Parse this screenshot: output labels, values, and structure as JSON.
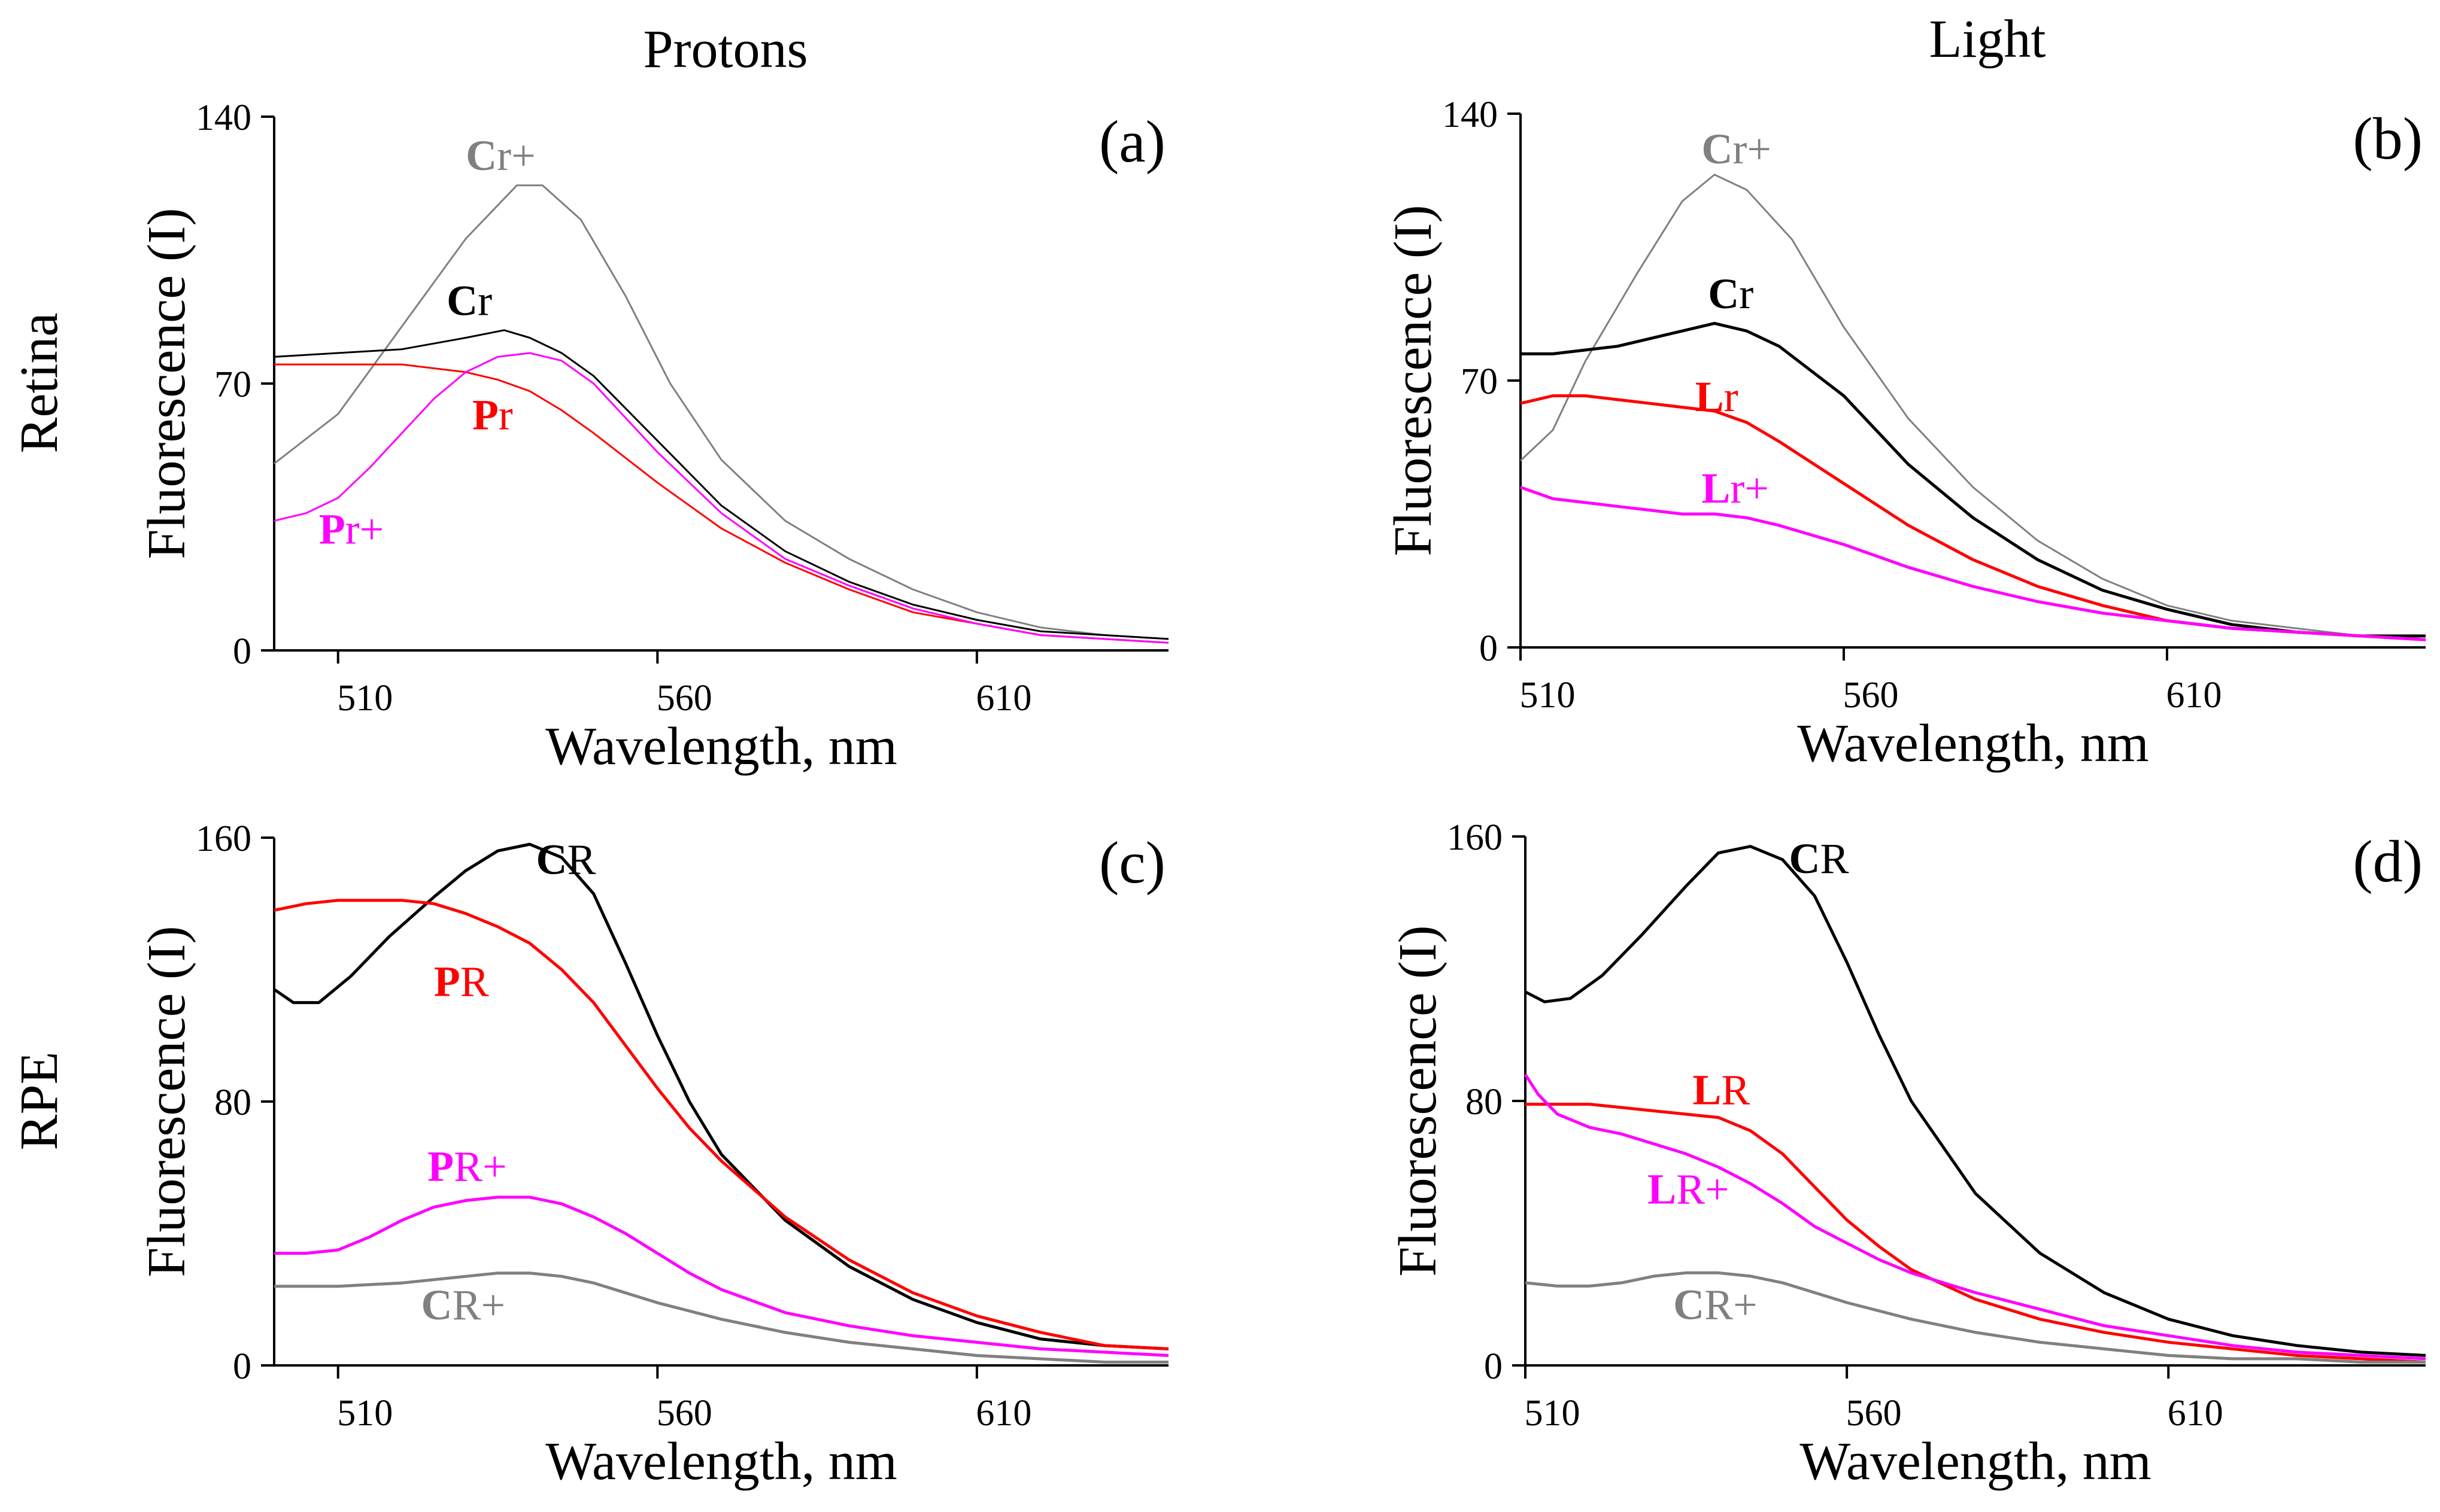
{
  "headers": {
    "col_left": "Protons",
    "col_right": "Light",
    "row_top": "Retina",
    "row_bottom": "RPE"
  },
  "colors": {
    "black": "#000000",
    "gray": "#808080",
    "red": "#ff0000",
    "magenta": "#ff00ff"
  },
  "chart_data": [
    {
      "id": "a",
      "type": "line",
      "panel_label": "(a)",
      "xlabel": "Wavelength, nm",
      "ylabel": "Fluorescence (I)",
      "xlim": [
        500,
        640
      ],
      "ylim": [
        0,
        140
      ],
      "xticks": [
        510,
        560,
        610
      ],
      "yticks": [
        0,
        70,
        140
      ],
      "series": [
        {
          "name": "Cr+",
          "color": "#808080",
          "x": [
            500,
            510,
            520,
            530,
            538,
            542,
            548,
            555,
            562,
            570,
            580,
            590,
            600,
            610,
            620,
            630,
            640
          ],
          "y": [
            49,
            62,
            85,
            108,
            122,
            122,
            113,
            93,
            70,
            50,
            34,
            24,
            16,
            10,
            6,
            4,
            3
          ]
        },
        {
          "name": "Cr",
          "color": "#000000",
          "x": [
            500,
            510,
            520,
            530,
            536,
            540,
            545,
            550,
            560,
            570,
            580,
            590,
            600,
            610,
            620,
            630,
            640
          ],
          "y": [
            77,
            78,
            79,
            82,
            84,
            82,
            78,
            72,
            55,
            38,
            26,
            18,
            12,
            8,
            5,
            4,
            3
          ]
        },
        {
          "name": "Pr",
          "color": "#ff0000",
          "x": [
            500,
            510,
            520,
            530,
            535,
            540,
            545,
            550,
            560,
            570,
            580,
            590,
            600,
            610,
            620,
            630,
            640
          ],
          "y": [
            75,
            75,
            75,
            73,
            71,
            68,
            63,
            57,
            44,
            32,
            23,
            16,
            10,
            7,
            4,
            3,
            2
          ]
        },
        {
          "name": "Pr+",
          "color": "#ff00ff",
          "x": [
            500,
            505,
            510,
            515,
            520,
            525,
            530,
            535,
            540,
            545,
            550,
            560,
            570,
            580,
            590,
            600,
            610,
            620,
            630,
            640
          ],
          "y": [
            34,
            36,
            40,
            48,
            57,
            66,
            73,
            77,
            78,
            76,
            70,
            52,
            36,
            24,
            17,
            11,
            7,
            4,
            3,
            2
          ]
        }
      ],
      "labels": [
        {
          "text_b": "C",
          "text_r": "r+",
          "color": "#808080",
          "x": 530,
          "y": 126
        },
        {
          "text_b": "C",
          "text_r": "r",
          "color": "#000000",
          "x": 527,
          "y": 88
        },
        {
          "text_b": "P",
          "text_r": "r",
          "color": "#ff0000",
          "x": 531,
          "y": 58
        },
        {
          "text_b": "P",
          "text_r": "r+",
          "color": "#ff00ff",
          "x": 507,
          "y": 28
        }
      ]
    },
    {
      "id": "b",
      "type": "line",
      "panel_label": "(b)",
      "xlabel": "Wavelength, nm",
      "ylabel": "Fluorescence (I)",
      "xlim": [
        510,
        650
      ],
      "ylim": [
        0,
        140
      ],
      "xticks": [
        510,
        560,
        610
      ],
      "yticks": [
        0,
        70,
        140
      ],
      "series": [
        {
          "name": "Cr+",
          "color": "#808080",
          "x": [
            510,
            515,
            520,
            528,
            535,
            540,
            545,
            552,
            560,
            570,
            580,
            590,
            600,
            610,
            620,
            630,
            640,
            650
          ],
          "y": [
            49,
            57,
            75,
            98,
            117,
            124,
            120,
            107,
            84,
            60,
            42,
            28,
            18,
            11,
            7,
            5,
            3,
            3
          ]
        },
        {
          "name": "Cr",
          "color": "#000000",
          "x": [
            510,
            515,
            520,
            525,
            530,
            535,
            540,
            545,
            550,
            560,
            570,
            580,
            590,
            600,
            610,
            620,
            630,
            640,
            650
          ],
          "y": [
            77,
            77,
            78,
            79,
            81,
            83,
            85,
            83,
            79,
            66,
            48,
            34,
            23,
            15,
            10,
            6,
            4,
            3,
            3
          ]
        },
        {
          "name": "Lr",
          "color": "#ff0000",
          "x": [
            510,
            515,
            520,
            525,
            530,
            535,
            540,
            545,
            550,
            560,
            570,
            580,
            590,
            600,
            610,
            620,
            630,
            640,
            650
          ],
          "y": [
            64,
            66,
            66,
            65,
            64,
            63,
            62,
            59,
            54,
            43,
            32,
            23,
            16,
            11,
            7,
            5,
            4,
            3,
            2
          ]
        },
        {
          "name": "Lr+",
          "color": "#ff00ff",
          "x": [
            510,
            515,
            520,
            525,
            530,
            535,
            540,
            545,
            550,
            560,
            570,
            580,
            590,
            600,
            610,
            620,
            630,
            640,
            650
          ],
          "y": [
            42,
            39,
            38,
            37,
            36,
            35,
            35,
            34,
            32,
            27,
            21,
            16,
            12,
            9,
            7,
            5,
            4,
            3,
            2
          ]
        }
      ],
      "labels": [
        {
          "text_b": "C",
          "text_r": "r+",
          "color": "#808080",
          "x": 538,
          "y": 127
        },
        {
          "text_b": "C",
          "text_r": "r",
          "color": "#000000",
          "x": 539,
          "y": 89
        },
        {
          "text_b": "L",
          "text_r": "r",
          "color": "#ff0000",
          "x": 537,
          "y": 62
        },
        {
          "text_b": "L",
          "text_r": "r+",
          "color": "#ff00ff",
          "x": 538,
          "y": 38
        }
      ]
    },
    {
      "id": "c",
      "type": "line",
      "panel_label": "(c)",
      "xlabel": "Wavelength, nm",
      "ylabel": "Fluorescence (I)",
      "xlim": [
        500,
        640
      ],
      "ylim": [
        0,
        160
      ],
      "xticks": [
        510,
        560,
        610
      ],
      "yticks": [
        0,
        80,
        160
      ],
      "series": [
        {
          "name": "CR",
          "color": "#000000",
          "x": [
            500,
            503,
            507,
            512,
            518,
            525,
            530,
            535,
            540,
            545,
            550,
            555,
            560,
            565,
            570,
            580,
            590,
            600,
            610,
            620,
            630,
            640
          ],
          "y": [
            114,
            110,
            110,
            118,
            130,
            142,
            150,
            156,
            158,
            154,
            143,
            122,
            100,
            80,
            64,
            44,
            30,
            20,
            13,
            8,
            6,
            5
          ]
        },
        {
          "name": "PR",
          "color": "#ff0000",
          "x": [
            500,
            505,
            510,
            520,
            525,
            530,
            535,
            540,
            545,
            550,
            555,
            560,
            565,
            570,
            580,
            590,
            600,
            610,
            620,
            630,
            640
          ],
          "y": [
            138,
            140,
            141,
            141,
            140,
            137,
            133,
            128,
            120,
            110,
            97,
            84,
            72,
            62,
            45,
            32,
            22,
            15,
            10,
            6,
            5
          ]
        },
        {
          "name": "PR+",
          "color": "#ff00ff",
          "x": [
            500,
            505,
            510,
            515,
            520,
            525,
            530,
            535,
            540,
            545,
            550,
            555,
            560,
            565,
            570,
            580,
            590,
            600,
            610,
            620,
            630,
            640
          ],
          "y": [
            34,
            34,
            35,
            39,
            44,
            48,
            50,
            51,
            51,
            49,
            45,
            40,
            34,
            28,
            23,
            16,
            12,
            9,
            7,
            5,
            4,
            3
          ]
        },
        {
          "name": "CR+",
          "color": "#808080",
          "x": [
            500,
            505,
            510,
            520,
            530,
            535,
            540,
            545,
            550,
            555,
            560,
            570,
            580,
            590,
            600,
            610,
            620,
            630,
            640
          ],
          "y": [
            24,
            24,
            24,
            25,
            27,
            28,
            28,
            27,
            25,
            22,
            19,
            14,
            10,
            7,
            5,
            3,
            2,
            1,
            1
          ]
        }
      ],
      "labels": [
        {
          "text_b": "C",
          "text_r": "R",
          "color": "#000000",
          "x": 541,
          "y": 149
        },
        {
          "text_b": "P",
          "text_r": "R",
          "color": "#ff0000",
          "x": 525,
          "y": 112
        },
        {
          "text_b": "P",
          "text_r": "R+",
          "color": "#ff00ff",
          "x": 524,
          "y": 56
        },
        {
          "text_b": "C",
          "text_r": "R+",
          "color": "#808080",
          "x": 523,
          "y": 14
        }
      ]
    },
    {
      "id": "d",
      "type": "line",
      "panel_label": "(d)",
      "xlabel": "Wavelength, nm",
      "ylabel": "Fluorescence (I)",
      "xlim": [
        510,
        650
      ],
      "ylim": [
        0,
        160
      ],
      "xticks": [
        510,
        560,
        610
      ],
      "yticks": [
        0,
        80,
        160
      ],
      "series": [
        {
          "name": "CR",
          "color": "#000000",
          "x": [
            510,
            513,
            517,
            522,
            528,
            535,
            540,
            545,
            550,
            555,
            560,
            565,
            570,
            580,
            590,
            600,
            610,
            620,
            630,
            640,
            650
          ],
          "y": [
            113,
            110,
            111,
            118,
            130,
            145,
            155,
            157,
            153,
            142,
            122,
            100,
            80,
            52,
            34,
            22,
            14,
            9,
            6,
            4,
            3
          ]
        },
        {
          "name": "LR",
          "color": "#ff0000",
          "x": [
            510,
            515,
            520,
            525,
            530,
            535,
            540,
            545,
            550,
            555,
            560,
            565,
            570,
            580,
            590,
            600,
            610,
            620,
            630,
            640,
            650
          ],
          "y": [
            79,
            79,
            79,
            78,
            77,
            76,
            75,
            71,
            64,
            54,
            44,
            36,
            29,
            20,
            14,
            10,
            7,
            5,
            3,
            2,
            1
          ]
        },
        {
          "name": "LR+",
          "color": "#ff00ff",
          "x": [
            510,
            512,
            515,
            520,
            525,
            530,
            535,
            540,
            545,
            550,
            555,
            560,
            565,
            570,
            580,
            590,
            600,
            610,
            620,
            630,
            640,
            650
          ],
          "y": [
            88,
            82,
            76,
            72,
            70,
            67,
            64,
            60,
            55,
            49,
            42,
            37,
            32,
            28,
            22,
            17,
            12,
            9,
            6,
            4,
            3,
            2
          ]
        },
        {
          "name": "CR+",
          "color": "#808080",
          "x": [
            510,
            515,
            520,
            525,
            530,
            535,
            540,
            545,
            550,
            555,
            560,
            570,
            580,
            590,
            600,
            610,
            620,
            630,
            640,
            650
          ],
          "y": [
            25,
            24,
            24,
            25,
            27,
            28,
            28,
            27,
            25,
            22,
            19,
            14,
            10,
            7,
            5,
            3,
            2,
            2,
            1,
            1
          ]
        }
      ],
      "labels": [
        {
          "text_b": "C",
          "text_r": "R",
          "color": "#000000",
          "x": 551,
          "y": 149
        },
        {
          "text_b": "L",
          "text_r": "R",
          "color": "#ff0000",
          "x": 536,
          "y": 79
        },
        {
          "text_b": "L",
          "text_r": "R+",
          "color": "#ff00ff",
          "x": 529,
          "y": 49
        },
        {
          "text_b": "C",
          "text_r": "R+",
          "color": "#808080",
          "x": 533,
          "y": 14
        }
      ]
    }
  ]
}
